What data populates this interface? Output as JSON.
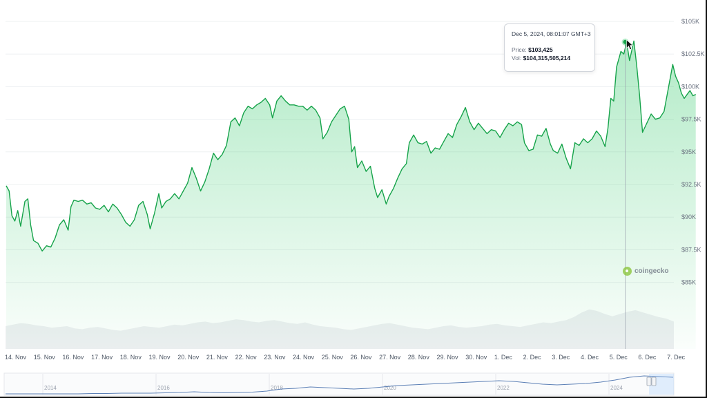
{
  "chart_data": {
    "type": "area",
    "title": "",
    "xlabel": "",
    "ylabel": "",
    "ylim": [
      83000,
      105000
    ],
    "y_ticks": [
      "$85K",
      "$87.5K",
      "$90K",
      "$92.5K",
      "$95K",
      "$97.5K",
      "$100K",
      "$102.5K",
      "$105K"
    ],
    "y_tick_values": [
      85000,
      87500,
      90000,
      92500,
      95000,
      97500,
      100000,
      102500,
      105000
    ],
    "x_ticks": [
      "14. Nov",
      "15. Nov",
      "16. Nov",
      "17. Nov",
      "18. Nov",
      "19. Nov",
      "20. Nov",
      "21. Nov",
      "22. Nov",
      "23. Nov",
      "24. Nov",
      "25. Nov",
      "26. Nov",
      "27. Nov",
      "28. Nov",
      "29. Nov",
      "30. Nov",
      "1. Dec",
      "2. Dec",
      "3. Dec",
      "4. Dec",
      "5. Dec",
      "6. Dec",
      "7. Dec"
    ],
    "x_range_days": [
      0,
      23.95
    ],
    "series": [
      {
        "values": [
          [
            0.0,
            92400
          ],
          [
            0.1,
            92000
          ],
          [
            0.2,
            90100
          ],
          [
            0.3,
            89700
          ],
          [
            0.4,
            90500
          ],
          [
            0.5,
            89300
          ],
          [
            0.65,
            91200
          ],
          [
            0.75,
            91400
          ],
          [
            0.85,
            89400
          ],
          [
            0.95,
            88200
          ],
          [
            1.1,
            88000
          ],
          [
            1.25,
            87400
          ],
          [
            1.4,
            87800
          ],
          [
            1.55,
            87700
          ],
          [
            1.7,
            88400
          ],
          [
            1.85,
            89400
          ],
          [
            2.0,
            89800
          ],
          [
            2.15,
            89000
          ],
          [
            2.25,
            90800
          ],
          [
            2.35,
            91300
          ],
          [
            2.5,
            91200
          ],
          [
            2.65,
            91300
          ],
          [
            2.8,
            91000
          ],
          [
            2.95,
            91100
          ],
          [
            3.1,
            90700
          ],
          [
            3.25,
            90600
          ],
          [
            3.4,
            90900
          ],
          [
            3.55,
            90400
          ],
          [
            3.7,
            91000
          ],
          [
            3.85,
            90700
          ],
          [
            4.0,
            90200
          ],
          [
            4.15,
            89600
          ],
          [
            4.3,
            89300
          ],
          [
            4.45,
            89800
          ],
          [
            4.6,
            90900
          ],
          [
            4.75,
            91200
          ],
          [
            4.9,
            90200
          ],
          [
            5.0,
            89100
          ],
          [
            5.15,
            90300
          ],
          [
            5.3,
            91800
          ],
          [
            5.4,
            90700
          ],
          [
            5.55,
            91200
          ],
          [
            5.7,
            91400
          ],
          [
            5.85,
            91800
          ],
          [
            6.0,
            91400
          ],
          [
            6.15,
            92000
          ],
          [
            6.3,
            92600
          ],
          [
            6.45,
            93800
          ],
          [
            6.6,
            93000
          ],
          [
            6.75,
            92000
          ],
          [
            6.9,
            92700
          ],
          [
            7.05,
            93700
          ],
          [
            7.2,
            94900
          ],
          [
            7.35,
            94400
          ],
          [
            7.5,
            94800
          ],
          [
            7.65,
            95500
          ],
          [
            7.8,
            97300
          ],
          [
            7.95,
            97600
          ],
          [
            8.1,
            97000
          ],
          [
            8.25,
            98000
          ],
          [
            8.4,
            98500
          ],
          [
            8.55,
            98300
          ],
          [
            8.7,
            98600
          ],
          [
            8.85,
            98800
          ],
          [
            9.0,
            99100
          ],
          [
            9.15,
            98600
          ],
          [
            9.25,
            97600
          ],
          [
            9.4,
            98900
          ],
          [
            9.55,
            99300
          ],
          [
            9.7,
            98900
          ],
          [
            9.85,
            98600
          ],
          [
            10.0,
            98600
          ],
          [
            10.15,
            98500
          ],
          [
            10.3,
            98500
          ],
          [
            10.45,
            98200
          ],
          [
            10.6,
            98500
          ],
          [
            10.75,
            98200
          ],
          [
            10.9,
            97600
          ],
          [
            11.0,
            96000
          ],
          [
            11.15,
            96500
          ],
          [
            11.3,
            97300
          ],
          [
            11.45,
            97800
          ],
          [
            11.6,
            98300
          ],
          [
            11.75,
            98500
          ],
          [
            11.9,
            97500
          ],
          [
            12.0,
            95000
          ],
          [
            12.1,
            95400
          ],
          [
            12.2,
            93800
          ],
          [
            12.35,
            94300
          ],
          [
            12.5,
            93500
          ],
          [
            12.65,
            93900
          ],
          [
            12.8,
            92200
          ],
          [
            12.9,
            91500
          ],
          [
            13.05,
            92100
          ],
          [
            13.2,
            91000
          ],
          [
            13.3,
            91600
          ],
          [
            13.45,
            92200
          ],
          [
            13.6,
            93000
          ],
          [
            13.75,
            93700
          ],
          [
            13.9,
            94100
          ],
          [
            14.0,
            95700
          ],
          [
            14.15,
            96300
          ],
          [
            14.3,
            95700
          ],
          [
            14.45,
            95600
          ],
          [
            14.6,
            95800
          ],
          [
            14.75,
            94900
          ],
          [
            14.9,
            95300
          ],
          [
            15.05,
            95200
          ],
          [
            15.2,
            95800
          ],
          [
            15.35,
            96400
          ],
          [
            15.5,
            96100
          ],
          [
            15.65,
            97100
          ],
          [
            15.8,
            97700
          ],
          [
            15.95,
            98400
          ],
          [
            16.1,
            97300
          ],
          [
            16.25,
            96700
          ],
          [
            16.4,
            97200
          ],
          [
            16.55,
            96800
          ],
          [
            16.7,
            96400
          ],
          [
            16.85,
            96700
          ],
          [
            17.0,
            96600
          ],
          [
            17.15,
            96100
          ],
          [
            17.3,
            96700
          ],
          [
            17.45,
            97200
          ],
          [
            17.6,
            97000
          ],
          [
            17.75,
            97300
          ],
          [
            17.9,
            97100
          ],
          [
            18.0,
            95700
          ],
          [
            18.15,
            95100
          ],
          [
            18.3,
            95200
          ],
          [
            18.45,
            96300
          ],
          [
            18.6,
            96200
          ],
          [
            18.75,
            96800
          ],
          [
            18.9,
            95600
          ],
          [
            19.0,
            95100
          ],
          [
            19.15,
            94900
          ],
          [
            19.3,
            95600
          ],
          [
            19.45,
            94500
          ],
          [
            19.6,
            93700
          ],
          [
            19.75,
            95700
          ],
          [
            19.9,
            95500
          ],
          [
            20.05,
            96000
          ],
          [
            20.2,
            95700
          ],
          [
            20.35,
            96000
          ],
          [
            20.5,
            96600
          ],
          [
            20.65,
            96200
          ],
          [
            20.8,
            95400
          ],
          [
            20.9,
            96800
          ],
          [
            21.0,
            99100
          ],
          [
            21.1,
            98900
          ],
          [
            21.2,
            101500
          ],
          [
            21.35,
            102700
          ],
          [
            21.45,
            102500
          ],
          [
            21.55,
            103400
          ],
          [
            21.65,
            102000
          ],
          [
            21.8,
            103500
          ],
          [
            21.9,
            101600
          ],
          [
            22.0,
            99300
          ],
          [
            22.1,
            96500
          ],
          [
            22.25,
            97200
          ],
          [
            22.4,
            97900
          ],
          [
            22.55,
            97500
          ],
          [
            22.7,
            97600
          ],
          [
            22.85,
            98100
          ],
          [
            22.95,
            99300
          ],
          [
            23.05,
            100500
          ],
          [
            23.15,
            101700
          ],
          [
            23.25,
            100800
          ],
          [
            23.35,
            100300
          ],
          [
            23.45,
            99500
          ],
          [
            23.55,
            99100
          ],
          [
            23.65,
            99400
          ],
          [
            23.75,
            99700
          ],
          [
            23.85,
            99300
          ],
          [
            23.95,
            99400
          ]
        ]
      }
    ],
    "volume_profile": [
      3.0,
      3.2,
      3.4,
      3.3,
      3.1,
      3.0,
      2.8,
      2.9,
      3.0,
      2.7,
      2.6,
      2.8,
      2.9,
      2.7,
      2.5,
      2.4,
      2.6,
      2.8,
      3.0,
      2.9,
      2.8,
      3.0,
      3.2,
      3.1,
      3.3,
      3.5,
      3.6,
      3.4,
      3.5,
      3.7,
      3.9,
      3.8,
      3.6,
      3.5,
      3.7,
      3.8,
      3.6,
      3.4,
      3.3,
      3.5,
      3.2,
      3.0,
      2.9,
      2.8,
      2.6,
      2.5,
      2.7,
      2.9,
      3.1,
      3.3,
      3.4,
      3.2,
      3.0,
      2.8,
      2.7,
      2.6,
      2.8,
      3.0,
      3.1,
      2.9,
      2.8,
      2.9,
      3.0,
      3.2,
      3.3,
      3.1,
      3.0,
      2.9,
      3.1,
      3.3,
      3.5,
      3.4,
      3.6,
      3.8,
      4.2,
      4.8,
      5.2,
      5.0,
      4.6,
      4.3,
      4.6,
      4.9,
      5.1,
      4.8,
      4.5,
      4.2,
      4.0,
      3.6
    ],
    "nav_years": [
      "2014",
      "2016",
      "2018",
      "2020",
      "2022",
      "2024"
    ],
    "hover": {
      "day": 21.5,
      "price": 103425
    }
  },
  "tooltip": {
    "date": "Dec 5, 2024, 08:01:07 GMT+3",
    "price_label": "Price:",
    "price_value": "$103,425",
    "vol_label": "Vol:",
    "vol_value": "$104,315,505,214"
  },
  "watermark": {
    "text": "coingecko"
  },
  "colors": {
    "line": "#16a34a",
    "area_top": "#22c55e",
    "grid": "#eef0f2",
    "volume": "#e5e7eb",
    "navigator_line": "#5b7fb5",
    "crosshair": "#9ca3af"
  }
}
